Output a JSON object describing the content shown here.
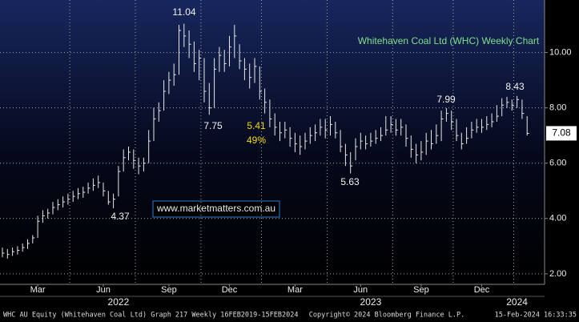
{
  "chart_data": {
    "type": "hlc",
    "title": "Whitehaven Coal Ltd (WHC) Weekly Chart",
    "watermark": "www.marketmatters.com.au",
    "annotations": [
      "5.41",
      "49%"
    ],
    "color": "#e8e8e8",
    "grid": true,
    "ylim": [
      1.62,
      11.9
    ],
    "yticks": [
      {
        "value": 2,
        "label": "2.00"
      },
      {
        "value": 4,
        "label": "4.00"
      },
      {
        "value": 6,
        "label": "6.00"
      },
      {
        "value": 8,
        "label": "8.00"
      },
      {
        "value": 10,
        "label": "10.00"
      }
    ],
    "categories": [
      null,
      null,
      null,
      null,
      null,
      null,
      null,
      "Mar",
      null,
      null,
      null,
      null,
      null,
      null,
      null,
      null,
      null,
      null,
      null,
      null,
      "Jun",
      null,
      null,
      null,
      null,
      null,
      null,
      null,
      null,
      null,
      null,
      null,
      null,
      "Sep",
      null,
      null,
      null,
      null,
      null,
      null,
      null,
      null,
      null,
      null,
      null,
      "Dec",
      null,
      null,
      null,
      null,
      null,
      null,
      null,
      null,
      null,
      null,
      null,
      null,
      "Mar",
      null,
      null,
      null,
      null,
      null,
      null,
      null,
      null,
      null,
      null,
      null,
      null,
      "Jun",
      null,
      null,
      null,
      null,
      null,
      null,
      null,
      null,
      null,
      null,
      null,
      "Sep",
      null,
      null,
      null,
      null,
      null,
      null,
      null,
      null,
      null,
      null,
      null,
      "Dec",
      null,
      null,
      null,
      null,
      null,
      null,
      null,
      null,
      null
    ],
    "year_labels": [
      null,
      null,
      null,
      null,
      null,
      null,
      null,
      null,
      null,
      null,
      null,
      null,
      null,
      null,
      null,
      null,
      null,
      null,
      null,
      null,
      null,
      null,
      null,
      "2022",
      null,
      null,
      null,
      null,
      null,
      null,
      null,
      null,
      null,
      null,
      null,
      null,
      null,
      null,
      null,
      null,
      null,
      null,
      null,
      null,
      null,
      null,
      null,
      null,
      null,
      null,
      null,
      null,
      null,
      null,
      null,
      null,
      null,
      null,
      null,
      null,
      null,
      null,
      null,
      null,
      null,
      null,
      null,
      null,
      null,
      null,
      null,
      null,
      null,
      "2023",
      null,
      null,
      null,
      null,
      null,
      null,
      null,
      null,
      null,
      null,
      null,
      null,
      null,
      null,
      null,
      null,
      null,
      null,
      null,
      null,
      null,
      null,
      null,
      null,
      null,
      null,
      null,
      null,
      "2024",
      null,
      null
    ],
    "values": [
      2.75,
      2.7,
      2.8,
      2.85,
      2.95,
      3.1,
      3.3,
      3.9,
      4.1,
      4.2,
      4.4,
      4.5,
      4.6,
      4.7,
      4.8,
      4.9,
      4.95,
      5.1,
      5.2,
      5.3,
      5.0,
      4.6,
      4.7,
      5.7,
      6.2,
      6.4,
      6.1,
      5.9,
      6.0,
      6.8,
      7.6,
      7.9,
      8.6,
      9.0,
      9.2,
      10.8,
      10.6,
      10.3,
      9.6,
      9.8,
      8.6,
      8.0,
      9.4,
      9.9,
      9.6,
      10.2,
      10.6,
      9.7,
      9.4,
      9.1,
      9.5,
      8.6,
      8.2,
      7.6,
      7.3,
      7.1,
      7.2,
      6.9,
      6.7,
      6.6,
      6.8,
      7.0,
      7.1,
      7.3,
      7.2,
      7.4,
      7.1,
      6.6,
      6.3,
      5.9,
      6.6,
      6.8,
      6.7,
      6.8,
      6.9,
      7.0,
      7.2,
      7.4,
      7.2,
      7.3,
      6.9,
      6.5,
      6.3,
      6.4,
      6.8,
      6.7,
      7.0,
      7.6,
      7.8,
      7.5,
      7.0,
      6.7,
      6.9,
      7.2,
      7.3,
      7.3,
      7.4,
      7.5,
      7.7,
      8.1,
      8.2,
      8.1,
      8.3,
      7.8,
      7.08
    ],
    "highs": [
      2.95,
      2.9,
      2.95,
      3.0,
      3.1,
      3.25,
      3.4,
      4.1,
      4.3,
      4.35,
      4.6,
      4.7,
      4.8,
      4.9,
      5.0,
      5.1,
      5.15,
      5.3,
      5.45,
      5.55,
      5.3,
      5.0,
      4.9,
      5.9,
      6.5,
      6.6,
      6.5,
      6.2,
      6.2,
      7.2,
      8.0,
      8.2,
      9.0,
      9.3,
      9.6,
      11.0,
      11.04,
      10.8,
      10.4,
      10.1,
      9.8,
      8.9,
      9.8,
      10.2,
      10.1,
      10.6,
      11.0,
      10.3,
      9.8,
      9.6,
      9.8,
      9.5,
      8.7,
      8.3,
      7.8,
      7.5,
      7.5,
      7.3,
      7.1,
      7.0,
      7.1,
      7.3,
      7.4,
      7.6,
      7.6,
      7.7,
      7.5,
      7.2,
      6.7,
      6.4,
      6.9,
      7.1,
      7.0,
      7.1,
      7.2,
      7.3,
      7.7,
      7.7,
      7.6,
      7.6,
      7.4,
      7.0,
      6.7,
      6.8,
      7.1,
      7.2,
      7.4,
      7.9,
      7.99,
      7.9,
      7.6,
      7.1,
      7.3,
      7.5,
      7.6,
      7.6,
      7.7,
      7.8,
      8.1,
      8.35,
      8.4,
      8.3,
      8.43,
      8.3,
      7.7
    ],
    "lows": [
      2.6,
      2.55,
      2.65,
      2.7,
      2.8,
      2.9,
      3.1,
      3.3,
      3.85,
      4.0,
      4.15,
      4.3,
      4.4,
      4.5,
      4.6,
      4.7,
      4.75,
      4.9,
      5.0,
      5.1,
      4.8,
      4.5,
      4.37,
      4.8,
      5.7,
      6.1,
      5.8,
      5.6,
      5.7,
      6.0,
      6.8,
      7.5,
      7.9,
      8.5,
      8.8,
      9.2,
      10.2,
      9.8,
      9.3,
      9.0,
      8.2,
      7.75,
      8.0,
      9.3,
      9.3,
      9.5,
      9.8,
      9.4,
      9.0,
      8.7,
      8.9,
      8.3,
      7.8,
      7.3,
      7.0,
      6.8,
      6.9,
      6.6,
      6.4,
      6.3,
      6.5,
      6.7,
      6.8,
      7.0,
      6.9,
      7.0,
      6.9,
      6.4,
      5.9,
      5.63,
      6.1,
      6.5,
      6.5,
      6.6,
      6.7,
      6.8,
      7.0,
      7.1,
      7.0,
      7.0,
      6.6,
      6.2,
      6.0,
      6.1,
      6.3,
      6.5,
      6.7,
      6.8,
      7.5,
      7.2,
      6.8,
      6.5,
      6.7,
      6.9,
      7.1,
      7.1,
      7.2,
      7.3,
      7.5,
      7.7,
      8.0,
      7.9,
      8.0,
      7.6,
      7.0
    ]
  },
  "footer": {
    "left": "WHC AU Equity (Whitehaven Coal Ltd) Graph 217  Weekly 16FEB2019-15FEB2024",
    "center": "Copyright© 2024 Bloomberg Finance L.P.",
    "right": "15-Feb-2024 16:33:35"
  }
}
